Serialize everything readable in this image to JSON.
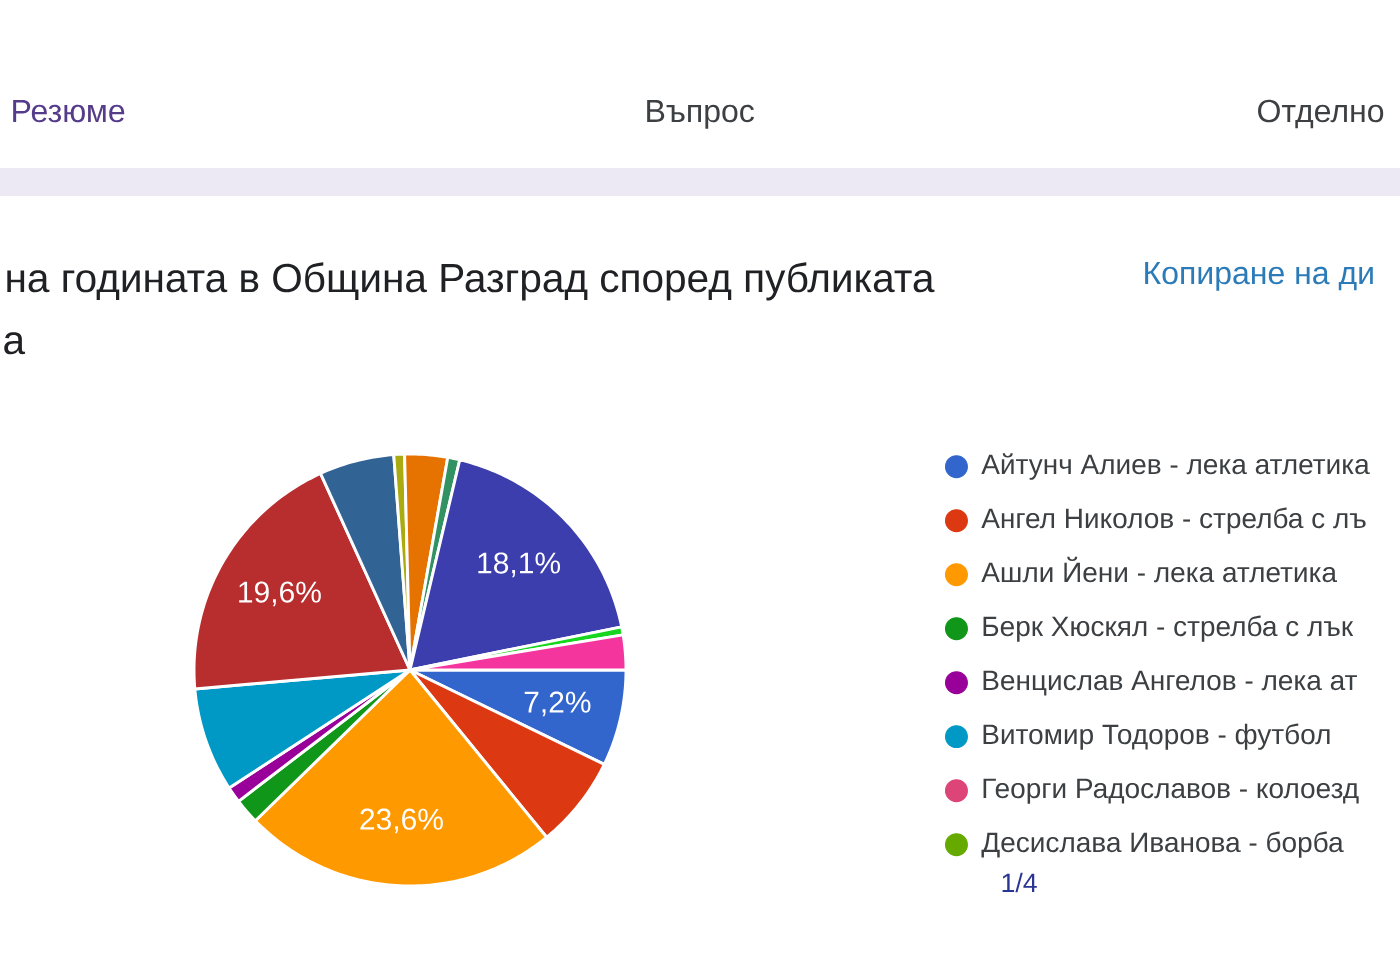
{
  "chart_data": {
    "type": "pie",
    "title": "на годината в Община Разград според публиката",
    "subtitle": "а",
    "categories": [
      "Айтунч Алиев - лека атлетика",
      "Ангел Николов - стрелба с лъ",
      "Ашли Йени - лека атлетика",
      "Берк Хюскял - стрелба с лък",
      "Венцислав Ангелов - лека ат",
      "Витомир Тодоров - футбол",
      "Георги Радославов - колоезд",
      "Десислава Иванова - борба",
      null,
      null,
      null,
      null,
      null,
      null,
      null,
      null
    ],
    "values": [
      7.2,
      6.9,
      23.6,
      1.9,
      1.2,
      7.8,
      0,
      0,
      19.6,
      5.6,
      0.8,
      3.2,
      0.9,
      18.1,
      0.6,
      2.6
    ],
    "colors": [
      "#3366cc",
      "#dc3912",
      "#ff9900",
      "#109618",
      "#990099",
      "#0099c6",
      "#dd4477",
      "#66aa00",
      "#b82e2e",
      "#316395",
      "#aaaa11",
      "#e67300",
      "#329262",
      "#3b3eac",
      "#16d620",
      "#f4359e"
    ],
    "value_labels": [
      "7,2%",
      null,
      "23,6%",
      null,
      null,
      null,
      null,
      null,
      "19,6%",
      null,
      null,
      null,
      null,
      "18,1%",
      null,
      null
    ],
    "legend": "right",
    "annotations": [
      "Резюме",
      "Въпрос",
      "Отделно",
      "Копиране на ди",
      "1/4"
    ]
  }
}
